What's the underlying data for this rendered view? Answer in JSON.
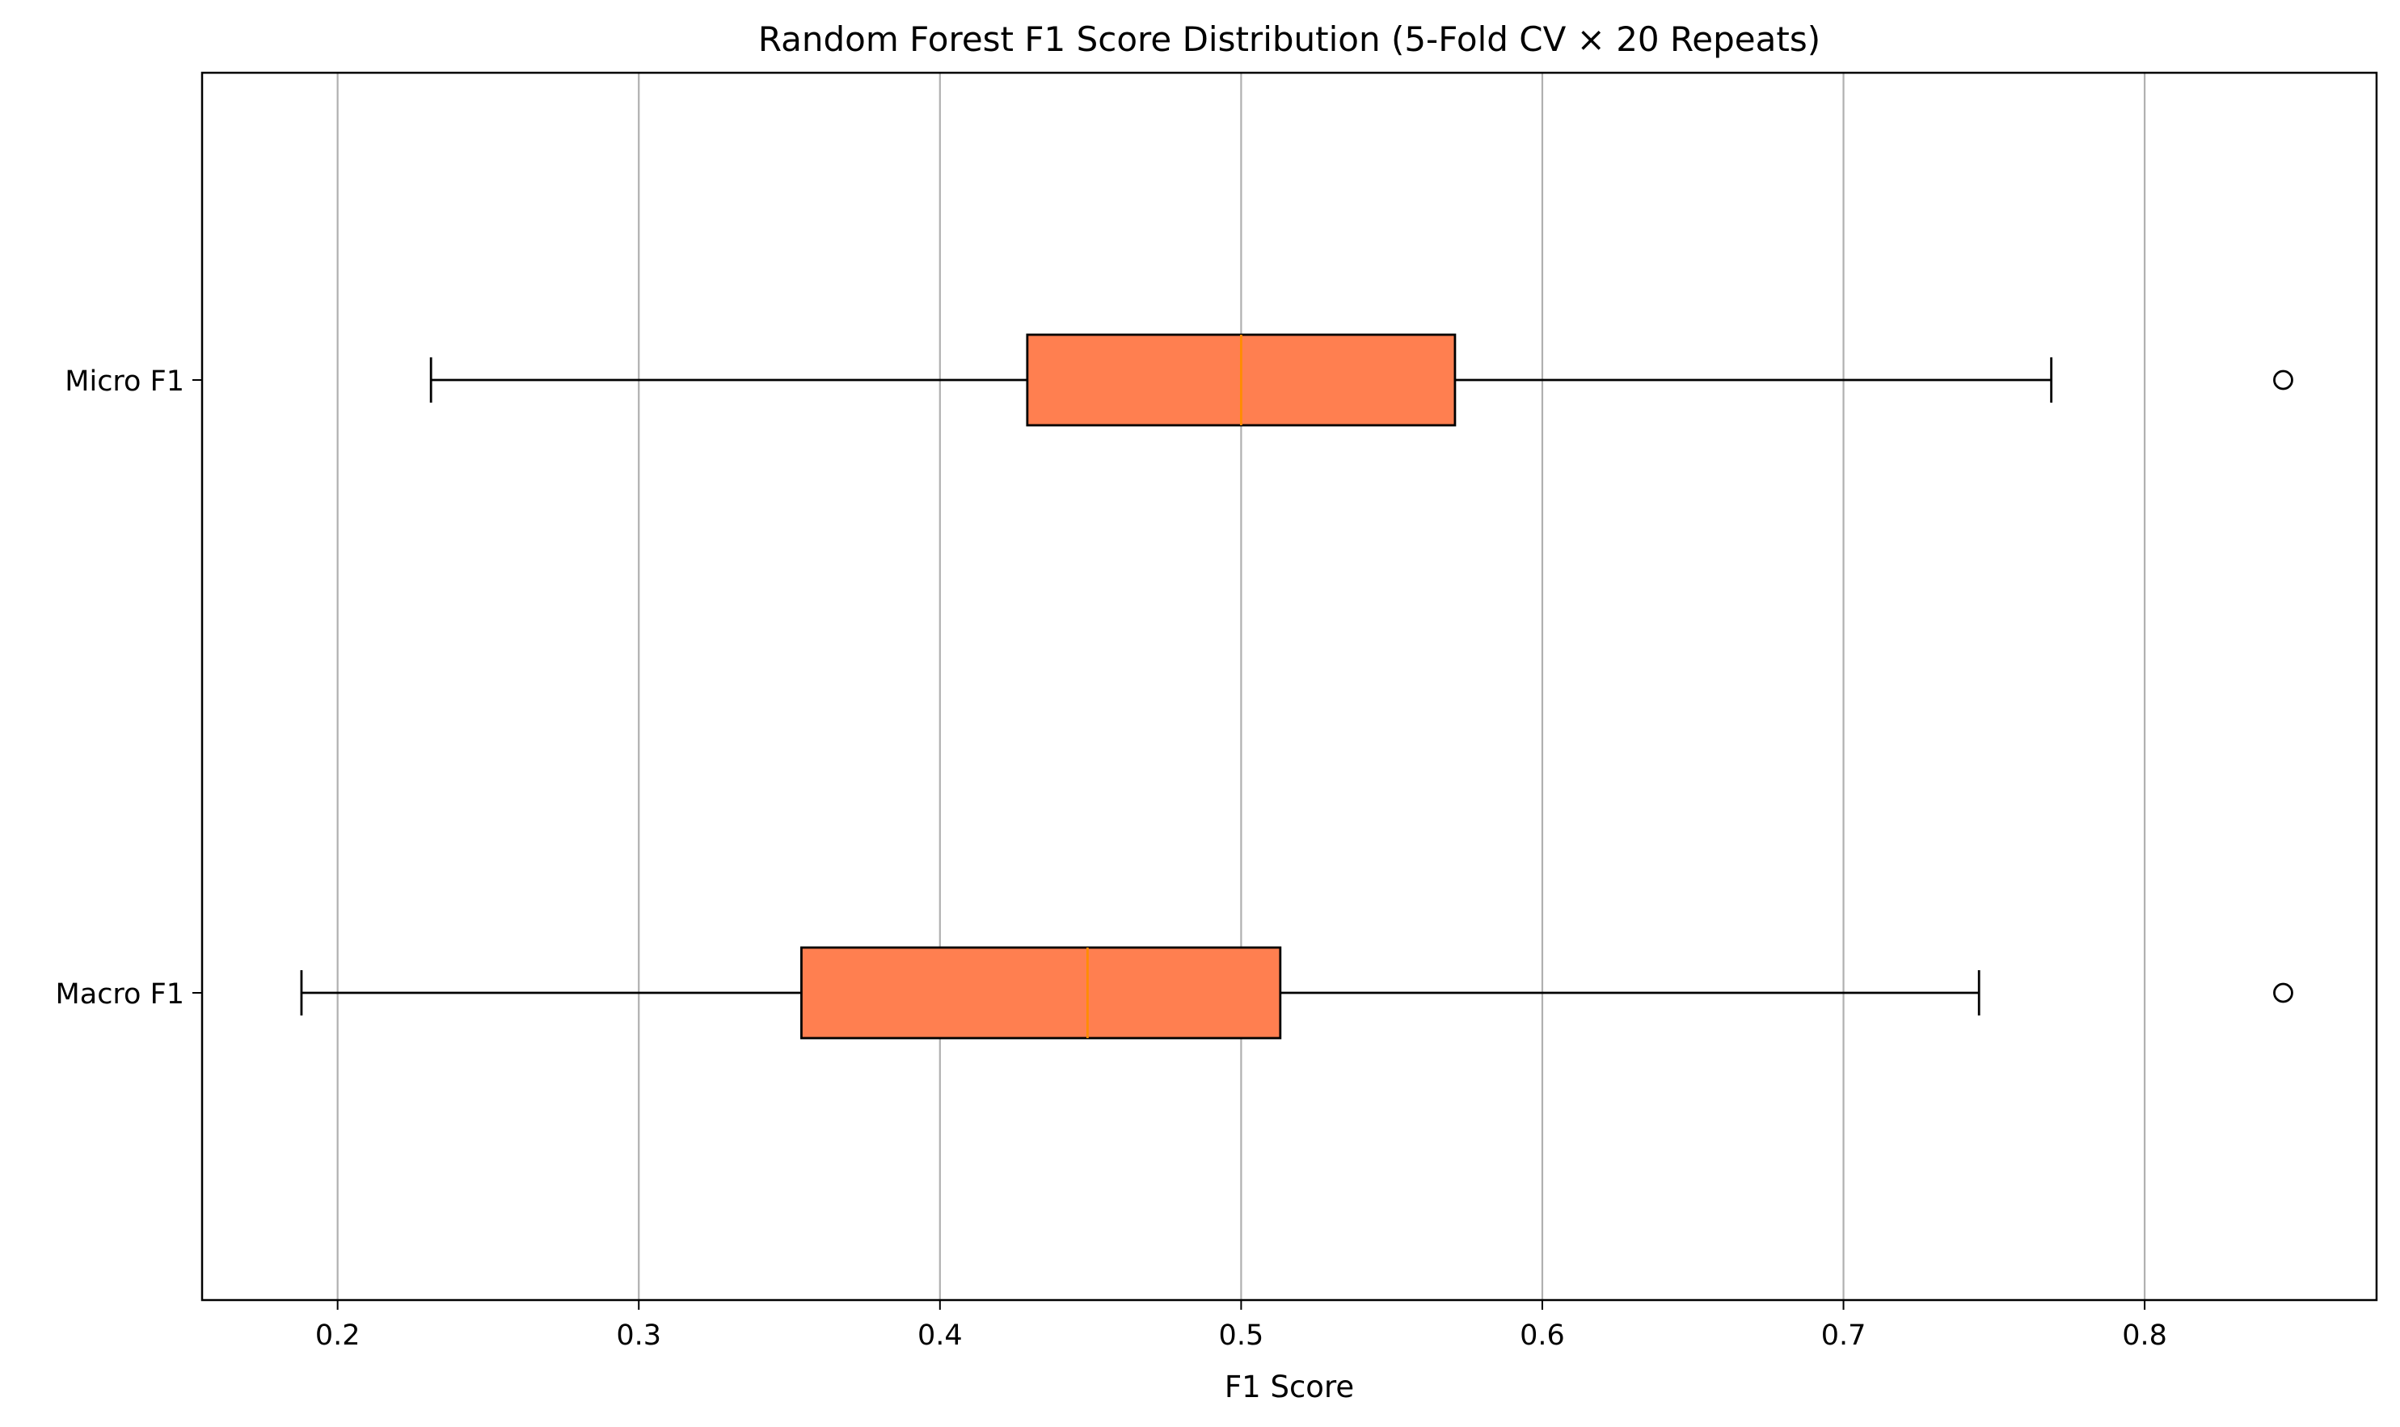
{
  "chart_data": {
    "type": "box",
    "orientation": "horizontal",
    "title": "Random Forest F1 Score Distribution (5-Fold CV × 20 Repeats)",
    "xlabel": "F1 Score",
    "ylabel": "",
    "xlim": [
      0.155,
      0.877
    ],
    "xticks": [
      0.2,
      0.3,
      0.4,
      0.5,
      0.6,
      0.7,
      0.8
    ],
    "xtick_labels": [
      "0.2",
      "0.3",
      "0.4",
      "0.5",
      "0.6",
      "0.7",
      "0.8"
    ],
    "grid": "x",
    "series": [
      {
        "name": "Micro F1",
        "whisker_low": 0.231,
        "q1": 0.429,
        "median": 0.5,
        "q3": 0.571,
        "whisker_high": 0.769,
        "outliers": [
          0.846
        ]
      },
      {
        "name": "Macro F1",
        "whisker_low": 0.188,
        "q1": 0.354,
        "median": 0.449,
        "q3": 0.513,
        "whisker_high": 0.745,
        "outliers": [
          0.846
        ]
      }
    ],
    "colors": {
      "box_fill": "#ff7f50",
      "median_line": "#ff8c00",
      "box_edge": "#000000",
      "grid": "#b0b0b0"
    }
  }
}
